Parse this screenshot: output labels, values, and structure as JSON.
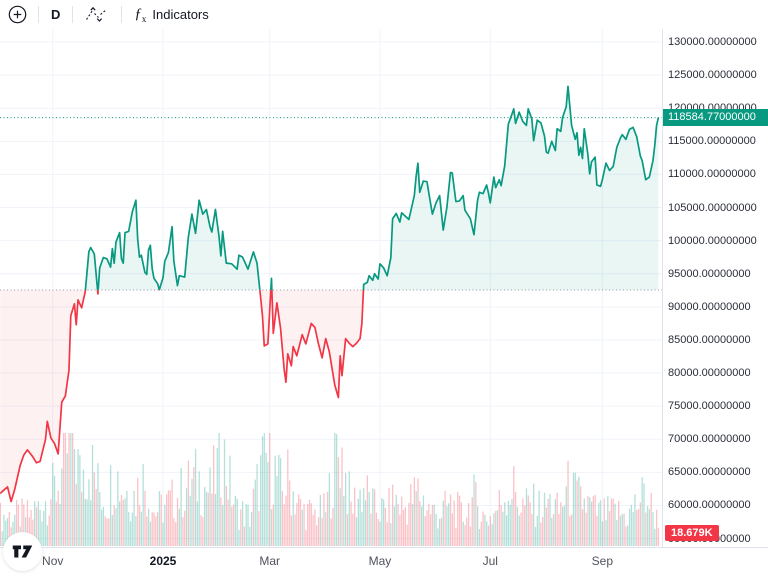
{
  "toolbar": {
    "add_label": "Add",
    "interval_label": "D",
    "fx_label": "ƒ",
    "fx_sub": "x",
    "indicators_label": "Indicators"
  },
  "price_axis": {
    "tick_labels": [
      "130000.00000000",
      "125000.00000000",
      "120000.00000000",
      "115000.00000000",
      "110000.00000000",
      "105000.00000000",
      "100000.00000000",
      "95000.00000000",
      "90000.00000000",
      "85000.00000000",
      "80000.00000000",
      "75000.00000000",
      "70000.00000000",
      "65000.00000000",
      "60000.00000000",
      "55000.00000000"
    ],
    "current_price_label": "118584.77000000",
    "volume_badge_label": "18.679K"
  },
  "time_axis": {
    "ticks": [
      {
        "label": "Nov",
        "date": "2024-11-01",
        "bold": false
      },
      {
        "label": "2025",
        "date": "2025-01-01",
        "bold": true
      },
      {
        "label": "Mar",
        "date": "2025-03-01",
        "bold": false
      },
      {
        "label": "May",
        "date": "2025-05-01",
        "bold": false
      },
      {
        "label": "Jul",
        "date": "2025-07-01",
        "bold": false
      },
      {
        "label": "Sep",
        "date": "2025-09-01",
        "bold": false
      }
    ]
  },
  "chart_data": {
    "type": "line",
    "style": "baseline-area",
    "interval": "D",
    "baseline_value": 92544,
    "current_price": 118584.77,
    "current_volume_label": "18.679K",
    "ylim": [
      52000,
      131900
    ],
    "grid": true,
    "colors": {
      "up": "#089981",
      "down": "#f23645",
      "up_fill": "rgba(8,153,129,0.09)",
      "down_fill": "rgba(242,54,69,0.07)",
      "vol_up": "rgba(8,153,129,0.30)",
      "vol_down": "rgba(242,54,69,0.30)",
      "grid": "#f0f3fa",
      "baseline_dots": "#9598a1"
    },
    "series": [
      [
        "2024-10-03",
        61800
      ],
      [
        "2024-10-04",
        62100
      ],
      [
        "2024-10-07",
        62800
      ],
      [
        "2024-10-09",
        60600
      ],
      [
        "2024-10-11",
        62450
      ],
      [
        "2024-10-14",
        66050
      ],
      [
        "2024-10-16",
        67600
      ],
      [
        "2024-10-18",
        68400
      ],
      [
        "2024-10-21",
        67350
      ],
      [
        "2024-10-23",
        66450
      ],
      [
        "2024-10-25",
        66650
      ],
      [
        "2024-10-28",
        69950
      ],
      [
        "2024-10-29",
        72700
      ],
      [
        "2024-10-31",
        70200
      ],
      [
        "2024-11-02",
        69350
      ],
      [
        "2024-11-04",
        67800
      ],
      [
        "2024-11-06",
        75600
      ],
      [
        "2024-11-08",
        76550
      ],
      [
        "2024-11-10",
        80450
      ],
      [
        "2024-11-11",
        88650
      ],
      [
        "2024-11-13",
        90450
      ],
      [
        "2024-11-14",
        87300
      ],
      [
        "2024-11-15",
        91050
      ],
      [
        "2024-11-17",
        89850
      ],
      [
        "2024-11-19",
        92300
      ],
      [
        "2024-11-21",
        98350
      ],
      [
        "2024-11-22",
        98950
      ],
      [
        "2024-11-24",
        98000
      ],
      [
        "2024-11-26",
        91950
      ],
      [
        "2024-11-27",
        95900
      ],
      [
        "2024-11-29",
        97450
      ],
      [
        "2024-12-01",
        97250
      ],
      [
        "2024-12-03",
        96000
      ],
      [
        "2024-12-04",
        98800
      ],
      [
        "2024-12-05",
        96600
      ],
      [
        "2024-12-06",
        99800
      ],
      [
        "2024-12-08",
        101200
      ],
      [
        "2024-12-09",
        97300
      ],
      [
        "2024-12-10",
        96600
      ],
      [
        "2024-12-11",
        101200
      ],
      [
        "2024-12-13",
        101400
      ],
      [
        "2024-12-15",
        104300
      ],
      [
        "2024-12-17",
        106100
      ],
      [
        "2024-12-18",
        100200
      ],
      [
        "2024-12-19",
        97500
      ],
      [
        "2024-12-20",
        97800
      ],
      [
        "2024-12-22",
        95200
      ],
      [
        "2024-12-23",
        94900
      ],
      [
        "2024-12-24",
        98600
      ],
      [
        "2024-12-25",
        99300
      ],
      [
        "2024-12-26",
        95800
      ],
      [
        "2024-12-27",
        94300
      ],
      [
        "2024-12-29",
        93500
      ],
      [
        "2024-12-30",
        92600
      ],
      [
        "2025-01-01",
        94400
      ],
      [
        "2025-01-02",
        96900
      ],
      [
        "2025-01-04",
        98200
      ],
      [
        "2025-01-06",
        102100
      ],
      [
        "2025-01-07",
        96900
      ],
      [
        "2025-01-09",
        93200
      ],
      [
        "2025-01-10",
        94700
      ],
      [
        "2025-01-13",
        94500
      ],
      [
        "2025-01-15",
        100500
      ],
      [
        "2025-01-17",
        104000
      ],
      [
        "2025-01-19",
        101100
      ],
      [
        "2025-01-21",
        106100
      ],
      [
        "2025-01-23",
        104000
      ],
      [
        "2025-01-25",
        104700
      ],
      [
        "2025-01-27",
        102100
      ],
      [
        "2025-01-28",
        101300
      ],
      [
        "2025-01-30",
        104700
      ],
      [
        "2025-02-01",
        100600
      ],
      [
        "2025-02-02",
        97700
      ],
      [
        "2025-02-03",
        101400
      ],
      [
        "2025-02-05",
        96600
      ],
      [
        "2025-02-08",
        96500
      ],
      [
        "2025-02-11",
        95700
      ],
      [
        "2025-02-12",
        97800
      ],
      [
        "2025-02-14",
        97500
      ],
      [
        "2025-02-17",
        95700
      ],
      [
        "2025-02-20",
        98300
      ],
      [
        "2025-02-22",
        96600
      ],
      [
        "2025-02-24",
        91400
      ],
      [
        "2025-02-25",
        88700
      ],
      [
        "2025-02-26",
        84100
      ],
      [
        "2025-02-28",
        84400
      ],
      [
        "2025-03-02",
        94300
      ],
      [
        "2025-03-03",
        86000
      ],
      [
        "2025-03-05",
        90600
      ],
      [
        "2025-03-07",
        86800
      ],
      [
        "2025-03-09",
        80600
      ],
      [
        "2025-03-10",
        78600
      ],
      [
        "2025-03-11",
        82900
      ],
      [
        "2025-03-13",
        81100
      ],
      [
        "2025-03-14",
        84000
      ],
      [
        "2025-03-16",
        82600
      ],
      [
        "2025-03-19",
        85800
      ],
      [
        "2025-03-21",
        84400
      ],
      [
        "2025-03-24",
        87500
      ],
      [
        "2025-03-26",
        86900
      ],
      [
        "2025-03-28",
        84400
      ],
      [
        "2025-03-30",
        82300
      ],
      [
        "2025-04-01",
        85200
      ],
      [
        "2025-04-03",
        83200
      ],
      [
        "2025-04-06",
        78200
      ],
      [
        "2025-04-08",
        76300
      ],
      [
        "2025-04-09",
        82600
      ],
      [
        "2025-04-10",
        79600
      ],
      [
        "2025-04-12",
        85200
      ],
      [
        "2025-04-14",
        84500
      ],
      [
        "2025-04-16",
        84000
      ],
      [
        "2025-04-18",
        84500
      ],
      [
        "2025-04-20",
        85200
      ],
      [
        "2025-04-21",
        87500
      ],
      [
        "2025-04-22",
        93400
      ],
      [
        "2025-04-24",
        93700
      ],
      [
        "2025-04-25",
        94700
      ],
      [
        "2025-04-27",
        94000
      ],
      [
        "2025-04-28",
        95000
      ],
      [
        "2025-04-30",
        94200
      ],
      [
        "2025-05-01",
        96500
      ],
      [
        "2025-05-03",
        95900
      ],
      [
        "2025-05-05",
        94700
      ],
      [
        "2025-05-07",
        97400
      ],
      [
        "2025-05-08",
        103300
      ],
      [
        "2025-05-10",
        104100
      ],
      [
        "2025-05-12",
        102800
      ],
      [
        "2025-05-13",
        104200
      ],
      [
        "2025-05-15",
        103700
      ],
      [
        "2025-05-17",
        103200
      ],
      [
        "2025-05-19",
        105600
      ],
      [
        "2025-05-20",
        106800
      ],
      [
        "2025-05-21",
        109700
      ],
      [
        "2025-05-22",
        111700
      ],
      [
        "2025-05-23",
        107300
      ],
      [
        "2025-05-25",
        109000
      ],
      [
        "2025-05-27",
        108900
      ],
      [
        "2025-05-29",
        105600
      ],
      [
        "2025-05-30",
        104000
      ],
      [
        "2025-06-01",
        105700
      ],
      [
        "2025-06-03",
        106800
      ],
      [
        "2025-06-05",
        101600
      ],
      [
        "2025-06-07",
        105000
      ],
      [
        "2025-06-09",
        110300
      ],
      [
        "2025-06-10",
        110200
      ],
      [
        "2025-06-12",
        105900
      ],
      [
        "2025-06-14",
        106000
      ],
      [
        "2025-06-16",
        106800
      ],
      [
        "2025-06-17",
        104600
      ],
      [
        "2025-06-20",
        103300
      ],
      [
        "2025-06-22",
        100900
      ],
      [
        "2025-06-24",
        106100
      ],
      [
        "2025-06-25",
        107300
      ],
      [
        "2025-06-27",
        107100
      ],
      [
        "2025-06-29",
        108400
      ],
      [
        "2025-06-30",
        107200
      ],
      [
        "2025-07-01",
        105700
      ],
      [
        "2025-07-03",
        109600
      ],
      [
        "2025-07-04",
        108000
      ],
      [
        "2025-07-06",
        109200
      ],
      [
        "2025-07-07",
        108300
      ],
      [
        "2025-07-09",
        111300
      ],
      [
        "2025-07-11",
        117600
      ],
      [
        "2025-07-13",
        119100
      ],
      [
        "2025-07-14",
        119900
      ],
      [
        "2025-07-15",
        117700
      ],
      [
        "2025-07-17",
        119400
      ],
      [
        "2025-07-19",
        118000
      ],
      [
        "2025-07-21",
        117400
      ],
      [
        "2025-07-22",
        119900
      ],
      [
        "2025-07-24",
        118400
      ],
      [
        "2025-07-25",
        115100
      ],
      [
        "2025-07-27",
        118200
      ],
      [
        "2025-07-29",
        117800
      ],
      [
        "2025-07-31",
        115800
      ],
      [
        "2025-08-01",
        113400
      ],
      [
        "2025-08-02",
        113200
      ],
      [
        "2025-08-04",
        115000
      ],
      [
        "2025-08-06",
        113600
      ],
      [
        "2025-08-07",
        116900
      ],
      [
        "2025-08-09",
        116500
      ],
      [
        "2025-08-10",
        118600
      ],
      [
        "2025-08-12",
        120200
      ],
      [
        "2025-08-13",
        123300
      ],
      [
        "2025-08-15",
        117400
      ],
      [
        "2025-08-17",
        115300
      ],
      [
        "2025-08-18",
        116300
      ],
      [
        "2025-08-19",
        112900
      ],
      [
        "2025-08-20",
        114100
      ],
      [
        "2025-08-21",
        112400
      ],
      [
        "2025-08-22",
        116900
      ],
      [
        "2025-08-24",
        113000
      ],
      [
        "2025-08-25",
        110100
      ],
      [
        "2025-08-26",
        111900
      ],
      [
        "2025-08-28",
        112600
      ],
      [
        "2025-08-29",
        108400
      ],
      [
        "2025-08-31",
        108200
      ],
      [
        "2025-09-01",
        109200
      ],
      [
        "2025-09-03",
        111700
      ],
      [
        "2025-09-05",
        110600
      ],
      [
        "2025-09-07",
        111200
      ],
      [
        "2025-09-09",
        114100
      ],
      [
        "2025-09-11",
        115500
      ],
      [
        "2025-09-12",
        116000
      ],
      [
        "2025-09-14",
        115300
      ],
      [
        "2025-09-16",
        116800
      ],
      [
        "2025-09-18",
        117100
      ],
      [
        "2025-09-20",
        115700
      ],
      [
        "2025-09-22",
        112800
      ],
      [
        "2025-09-23",
        112100
      ],
      [
        "2025-09-25",
        109200
      ],
      [
        "2025-09-27",
        109600
      ],
      [
        "2025-09-29",
        112100
      ],
      [
        "2025-09-30",
        114400
      ],
      [
        "2025-10-01",
        117400
      ],
      [
        "2025-10-02",
        118584.77
      ]
    ],
    "volume_profile": [
      [
        "2024-10-04",
        30
      ],
      [
        "2024-10-20",
        32
      ],
      [
        "2024-10-29",
        48
      ],
      [
        "2024-11-05",
        65
      ],
      [
        "2024-11-11",
        115
      ],
      [
        "2024-11-13",
        105
      ],
      [
        "2024-11-16",
        70
      ],
      [
        "2024-11-21",
        88
      ],
      [
        "2024-11-26",
        60
      ],
      [
        "2024-12-01",
        45
      ],
      [
        "2024-12-05",
        78
      ],
      [
        "2024-12-09",
        60
      ],
      [
        "2024-12-17",
        50
      ],
      [
        "2024-12-20",
        72
      ],
      [
        "2024-12-27",
        35
      ],
      [
        "2025-01-03",
        42
      ],
      [
        "2025-01-09",
        50
      ],
      [
        "2025-01-13",
        58
      ],
      [
        "2025-01-20",
        68
      ],
      [
        "2025-01-27",
        55
      ],
      [
        "2025-02-03",
        95
      ],
      [
        "2025-02-10",
        38
      ],
      [
        "2025-02-18",
        30
      ],
      [
        "2025-02-25",
        82
      ],
      [
        "2025-02-28",
        88
      ],
      [
        "2025-03-03",
        80
      ],
      [
        "2025-03-08",
        55
      ],
      [
        "2025-03-11",
        68
      ],
      [
        "2025-03-18",
        38
      ],
      [
        "2025-03-25",
        32
      ],
      [
        "2025-04-01",
        36
      ],
      [
        "2025-04-07",
        92
      ],
      [
        "2025-04-09",
        100
      ],
      [
        "2025-04-15",
        40
      ],
      [
        "2025-04-22",
        58
      ],
      [
        "2025-04-28",
        38
      ],
      [
        "2025-05-05",
        35
      ],
      [
        "2025-05-09",
        48
      ],
      [
        "2025-05-14",
        38
      ],
      [
        "2025-05-22",
        55
      ],
      [
        "2025-05-28",
        38
      ],
      [
        "2025-06-02",
        32
      ],
      [
        "2025-06-06",
        38
      ],
      [
        "2025-06-10",
        42
      ],
      [
        "2025-06-16",
        30
      ],
      [
        "2025-06-22",
        48
      ],
      [
        "2025-06-28",
        28
      ],
      [
        "2025-07-02",
        30
      ],
      [
        "2025-07-10",
        55
      ],
      [
        "2025-07-14",
        58
      ],
      [
        "2025-07-18",
        40
      ],
      [
        "2025-07-24",
        42
      ],
      [
        "2025-07-31",
        38
      ],
      [
        "2025-08-02",
        45
      ],
      [
        "2025-08-08",
        35
      ],
      [
        "2025-08-13",
        58
      ],
      [
        "2025-08-19",
        48
      ],
      [
        "2025-08-25",
        40
      ],
      [
        "2025-09-01",
        32
      ],
      [
        "2025-09-08",
        35
      ],
      [
        "2025-09-15",
        30
      ],
      [
        "2025-09-22",
        48
      ],
      [
        "2025-09-25",
        52
      ],
      [
        "2025-09-29",
        35
      ],
      [
        "2025-10-01",
        28
      ],
      [
        "2025-10-02",
        18.679
      ]
    ]
  }
}
